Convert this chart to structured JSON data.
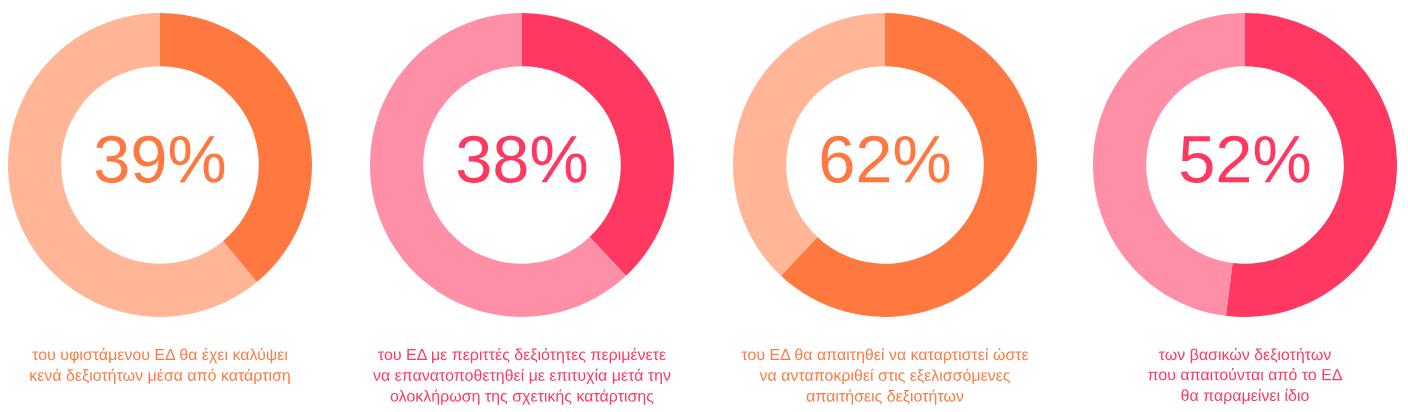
{
  "chart_data": [
    {
      "type": "donut",
      "categories": [
        null,
        null
      ],
      "values": [
        39,
        61
      ],
      "colors": [
        "#ff7840",
        "#ffb596"
      ],
      "annotations": [
        "39%",
        "του υφιστάμενου ΕΔ θα έχει καλύψει\nκενά δεξιοτήτων μέσα από κατάρτιση"
      ]
    },
    {
      "type": "donut",
      "categories": [
        null,
        null
      ],
      "values": [
        38,
        62
      ],
      "colors": [
        "#ff3862",
        "#ff8ea7"
      ],
      "annotations": [
        "38%",
        "του ΕΔ με περιττές δεξιότητες περιμένετε\nνα επανατοποθετηθεί με επιτυχία μετά την\nολοκλήρωση της σχετικής κατάρτισης"
      ]
    },
    {
      "type": "donut",
      "categories": [
        null,
        null
      ],
      "values": [
        62,
        38
      ],
      "colors": [
        "#ff7840",
        "#ffb596"
      ],
      "annotations": [
        "62%",
        "του ΕΔ θα απαιτηθεί να καταρτιστεί ώστε\nνα ανταποκριθεί στις εξελισσόμενες\nαπαιτήσεις δεξιοτήτων"
      ]
    },
    {
      "type": "donut",
      "categories": [
        null,
        null
      ],
      "values": [
        52,
        48
      ],
      "colors": [
        "#ff3862",
        "#ff8ea7"
      ],
      "annotations": [
        "52%",
        "των βασικών δεξιοτήτων\nπου απαιτούνται από το ΕΔ\nθα παραμείνει ίδιο"
      ]
    }
  ]
}
